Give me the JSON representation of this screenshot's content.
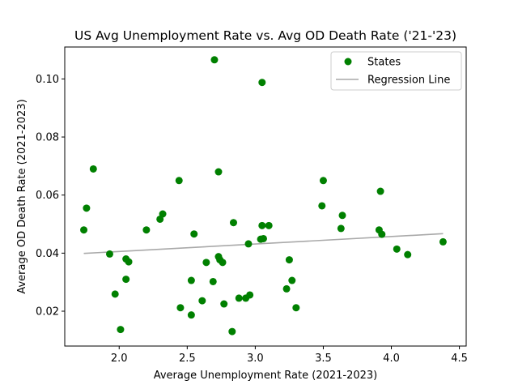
{
  "chart_data": {
    "type": "scatter",
    "title": "US Avg Unemployment Rate vs. Avg OD Death Rate ('21-'23)",
    "xlabel": "Average Unemployment Rate (2021-2023)",
    "ylabel": "Average OD Death Rate (2021-2023)",
    "xlim": [
      1.6,
      4.55
    ],
    "ylim": [
      0.008,
      0.111
    ],
    "xticks": [
      2.0,
      2.5,
      3.0,
      3.5,
      4.0,
      4.5
    ],
    "xtick_labels": [
      "2.0",
      "2.5",
      "3.0",
      "3.5",
      "4.0",
      "4.5"
    ],
    "yticks": [
      0.02,
      0.04,
      0.06,
      0.08,
      0.1
    ],
    "ytick_labels": [
      "0.02",
      "0.04",
      "0.06",
      "0.08",
      "0.10"
    ],
    "grid": false,
    "legend_position": "top-right",
    "series": [
      {
        "name": "States",
        "kind": "scatter",
        "color": "#008000",
        "points": [
          [
            1.74,
            0.048
          ],
          [
            1.76,
            0.0555
          ],
          [
            1.81,
            0.069
          ],
          [
            1.93,
            0.0397
          ],
          [
            1.97,
            0.0259
          ],
          [
            2.01,
            0.0137
          ],
          [
            2.05,
            0.038
          ],
          [
            2.05,
            0.031
          ],
          [
            2.07,
            0.037
          ],
          [
            2.2,
            0.048
          ],
          [
            2.3,
            0.0517
          ],
          [
            2.32,
            0.0535
          ],
          [
            2.44,
            0.065
          ],
          [
            2.45,
            0.0212
          ],
          [
            2.53,
            0.0187
          ],
          [
            2.53,
            0.0306
          ],
          [
            2.55,
            0.0466
          ],
          [
            2.61,
            0.0236
          ],
          [
            2.64,
            0.0368
          ],
          [
            2.69,
            0.0302
          ],
          [
            2.7,
            0.1066
          ],
          [
            2.73,
            0.068
          ],
          [
            2.73,
            0.0388
          ],
          [
            2.74,
            0.0377
          ],
          [
            2.76,
            0.0368
          ],
          [
            2.77,
            0.0225
          ],
          [
            2.83,
            0.013
          ],
          [
            2.84,
            0.0505
          ],
          [
            2.88,
            0.0245
          ],
          [
            2.93,
            0.0245
          ],
          [
            2.95,
            0.0432
          ],
          [
            2.96,
            0.0256
          ],
          [
            3.04,
            0.0448
          ],
          [
            3.05,
            0.0495
          ],
          [
            3.05,
            0.0988
          ],
          [
            3.06,
            0.045
          ],
          [
            3.1,
            0.0495
          ],
          [
            3.23,
            0.0277
          ],
          [
            3.25,
            0.0377
          ],
          [
            3.27,
            0.0306
          ],
          [
            3.3,
            0.0212
          ],
          [
            3.49,
            0.0563
          ],
          [
            3.5,
            0.065
          ],
          [
            3.63,
            0.0485
          ],
          [
            3.64,
            0.053
          ],
          [
            3.91,
            0.048
          ],
          [
            3.92,
            0.0613
          ],
          [
            3.93,
            0.0465
          ],
          [
            4.04,
            0.0414
          ],
          [
            4.12,
            0.0395
          ],
          [
            4.38,
            0.0439
          ]
        ]
      },
      {
        "name": "Regression Line",
        "kind": "line",
        "color": "#a9a9a9",
        "points": [
          [
            1.74,
            0.0399
          ],
          [
            4.38,
            0.0467
          ]
        ]
      }
    ]
  }
}
